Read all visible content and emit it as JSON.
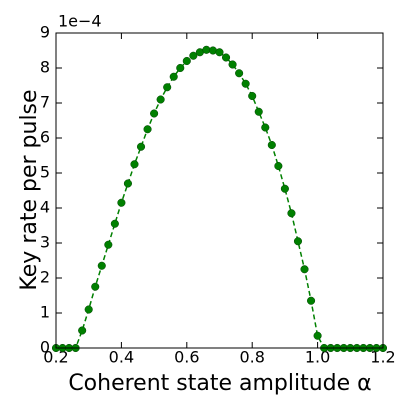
{
  "chart_data": {
    "type": "line",
    "x_label": "Coherent state amplitude α",
    "y_label": "Key rate per pulse",
    "y_offset_label": "1e−4",
    "x": [
      0.2,
      0.22,
      0.24,
      0.26,
      0.28,
      0.3,
      0.32,
      0.34,
      0.36,
      0.38,
      0.4,
      0.42,
      0.44,
      0.46,
      0.48,
      0.5,
      0.52,
      0.54,
      0.56,
      0.58,
      0.6,
      0.62,
      0.64,
      0.66,
      0.68,
      0.7,
      0.72,
      0.74,
      0.76,
      0.78,
      0.8,
      0.82,
      0.84,
      0.86,
      0.88,
      0.9,
      0.92,
      0.94,
      0.96,
      0.98,
      1.0,
      1.02,
      1.04,
      1.06,
      1.08,
      1.1,
      1.12,
      1.14,
      1.16,
      1.18,
      1.2
    ],
    "series": [
      {
        "color": "#008000",
        "values": [
          0,
          0,
          0,
          0,
          0.5,
          1.1,
          1.75,
          2.35,
          2.95,
          3.55,
          4.15,
          4.7,
          5.25,
          5.75,
          6.25,
          6.7,
          7.1,
          7.45,
          7.75,
          8.0,
          8.2,
          8.35,
          8.45,
          8.52,
          8.5,
          8.45,
          8.3,
          8.1,
          7.85,
          7.55,
          7.2,
          6.75,
          6.3,
          5.8,
          5.2,
          4.55,
          3.85,
          3.05,
          2.25,
          1.35,
          0.35,
          0,
          0,
          0,
          0,
          0,
          0,
          0,
          0,
          0,
          0
        ]
      }
    ],
    "xlim": [
      0.2,
      1.2
    ],
    "xticks": [
      0.2,
      0.4,
      0.6,
      0.8,
      {
        "value": 1,
        "label": "1.0"
      },
      1.2
    ],
    "ylim": [
      0,
      9
    ],
    "yticks": [
      0,
      1,
      2,
      3,
      4,
      5,
      6,
      7,
      8,
      9
    ]
  }
}
